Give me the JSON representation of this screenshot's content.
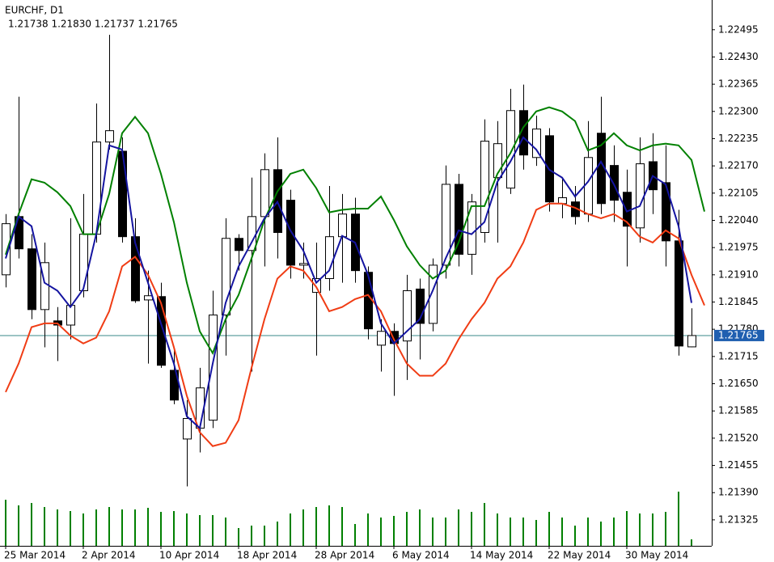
{
  "chart_data": {
    "type": "candlestick",
    "title": "EURCHF, D1",
    "subtitle": "1.21738 1.21830 1.21737 1.21765",
    "categories": [
      "25 Mar 2014",
      null,
      null,
      null,
      null,
      null,
      "2 Apr 2014",
      null,
      null,
      null,
      null,
      null,
      "10 Apr 2014",
      null,
      null,
      null,
      null,
      null,
      "18 Apr 2014",
      null,
      null,
      null,
      null,
      null,
      "28 Apr 2014",
      null,
      null,
      null,
      null,
      null,
      "6 May 2014",
      null,
      null,
      null,
      null,
      null,
      "14 May 2014",
      null,
      null,
      null,
      null,
      null,
      "22 May 2014",
      null,
      null,
      null,
      null,
      null,
      "30 May 2014",
      null,
      null,
      null,
      null,
      null,
      null
    ],
    "open": [
      1.2191,
      1.22049,
      1.21972,
      1.21827,
      1.218,
      1.2179,
      1.21872,
      1.22007,
      1.22227,
      1.22205,
      1.22001,
      1.2185,
      1.21858,
      1.21682,
      1.21518,
      1.21544,
      1.21563,
      1.21814,
      1.21997,
      1.21968,
      1.22049,
      1.22161,
      1.22088,
      1.21933,
      1.21868,
      1.21901,
      1.22001,
      1.22055,
      1.21916,
      1.21742,
      1.21775,
      1.21752,
      1.21876,
      1.21794,
      1.21933,
      1.22126,
      1.21959,
      1.22011,
      1.22142,
      1.22117,
      1.22302,
      1.2219,
      1.22242,
      1.2208,
      1.22084,
      1.22055,
      1.22248,
      1.22171,
      1.22107,
      1.22022,
      1.2218,
      1.2213,
      1.21991,
      1.21738,
      null
    ],
    "high": [
      1.22055,
      1.22335,
      1.22007,
      1.21987,
      1.21833,
      1.22045,
      1.22103,
      1.22319,
      1.22483,
      1.22238,
      1.22045,
      1.2192,
      1.21891,
      1.21736,
      1.21611,
      1.21688,
      1.21872,
      1.22045,
      1.22007,
      1.22142,
      1.222,
      1.22238,
      1.22113,
      1.21987,
      1.21987,
      1.22122,
      1.22103,
      1.22094,
      1.2193,
      1.21804,
      1.21794,
      1.2191,
      1.21901,
      1.21949,
      1.22171,
      1.22151,
      1.22103,
      1.22281,
      1.22277,
      1.22354,
      1.22364,
      1.2229,
      1.2226,
      1.22142,
      1.22122,
      1.22277,
      1.22335,
      1.22219,
      1.22161,
      1.22238,
      1.22248,
      1.22219,
      1.22065,
      1.2183,
      null
    ],
    "low": [
      1.2188,
      1.21949,
      1.21804,
      1.21737,
      1.21704,
      1.21756,
      1.21856,
      1.21987,
      1.22209,
      1.21987,
      1.21843,
      1.21698,
      1.21688,
      1.21601,
      1.21405,
      1.21486,
      1.21544,
      1.21717,
      1.2192,
      1.21679,
      1.2193,
      1.21949,
      1.21901,
      1.21901,
      1.21717,
      1.21872,
      1.21891,
      1.21891,
      1.21756,
      1.21679,
      1.21621,
      1.21659,
      1.21708,
      1.21775,
      1.21901,
      1.2193,
      1.2191,
      1.21987,
      1.21987,
      1.22103,
      1.22161,
      1.2217,
      1.22061,
      1.22045,
      1.2203,
      1.22036,
      1.22055,
      1.22036,
      1.2193,
      1.21987,
      1.22055,
      1.2193,
      1.21717,
      1.21737,
      null
    ],
    "close": [
      1.22032,
      1.21972,
      1.21827,
      1.21939,
      1.2179,
      1.21837,
      1.22007,
      1.22227,
      1.22254,
      1.22001,
      1.21848,
      1.2186,
      1.21694,
      1.21611,
      1.21567,
      1.2164,
      1.21814,
      1.21997,
      1.21968,
      1.22049,
      1.22161,
      1.22011,
      1.21933,
      1.21937,
      1.21901,
      1.22001,
      1.22055,
      1.2192,
      1.21781,
      1.21775,
      1.21746,
      1.21872,
      1.21794,
      1.21933,
      1.22126,
      1.21959,
      1.22084,
      1.22229,
      1.22223,
      1.22302,
      1.22196,
      1.22258,
      1.22084,
      1.22094,
      1.22049,
      1.2219,
      1.2208,
      1.22088,
      1.22026,
      1.22175,
      1.22113,
      1.21991,
      1.2174,
      1.21765,
      null
    ],
    "lines": [
      {
        "color": "#008000",
        "values": [
          1.21958,
          1.22055,
          1.22138,
          1.2213,
          1.22107,
          1.22074,
          1.22007,
          1.22007,
          1.22103,
          1.22248,
          1.22287,
          1.22248,
          1.22151,
          1.22036,
          1.21891,
          1.21775,
          1.21723,
          1.21804,
          1.21862,
          1.21949,
          1.22041,
          1.22109,
          1.22151,
          1.22161,
          1.22117,
          1.22059,
          1.22065,
          1.22068,
          1.22068,
          1.22097,
          1.22041,
          1.21978,
          1.21933,
          1.21901,
          1.2192,
          1.21987,
          1.22074,
          1.22074,
          1.22151,
          1.222,
          1.22262,
          1.223,
          1.2231,
          1.223,
          1.22277,
          1.22207,
          1.22219,
          1.22248,
          1.22219,
          1.22207,
          1.22219,
          1.22223,
          1.22219,
          1.22184,
          1.22061
        ]
      },
      {
        "color": "#f03c14",
        "values": [
          1.2163,
          1.21698,
          1.21785,
          1.21794,
          1.21794,
          1.21765,
          1.21746,
          1.2176,
          1.21823,
          1.2193,
          1.21953,
          1.2191,
          1.21843,
          1.21737,
          1.21621,
          1.21534,
          1.21501,
          1.21509,
          1.21563,
          1.21688,
          1.21804,
          1.21901,
          1.2193,
          1.2192,
          1.21881,
          1.21823,
          1.21833,
          1.21852,
          1.21862,
          1.21823,
          1.21756,
          1.21698,
          1.21669,
          1.21669,
          1.21698,
          1.21756,
          1.21804,
          1.21843,
          1.21901,
          1.2193,
          1.21987,
          1.22065,
          1.2208,
          1.2208,
          1.2207,
          1.22055,
          1.22045,
          1.22055,
          1.22036,
          1.22001,
          1.21987,
          1.22016,
          1.21997,
          1.2191,
          1.21837
        ]
      },
      {
        "color": "#1414a0",
        "values": [
          1.21949,
          1.22049,
          1.22026,
          1.21891,
          1.21872,
          1.21833,
          1.21876,
          1.22007,
          1.22219,
          1.22209,
          1.21987,
          1.21891,
          1.21794,
          1.21698,
          1.21572,
          1.21544,
          1.21698,
          1.21843,
          1.2193,
          1.21987,
          1.22045,
          1.22084,
          1.22016,
          1.21968,
          1.21891,
          1.2192,
          1.22003,
          1.21987,
          1.2191,
          1.21794,
          1.21746,
          1.21775,
          1.21804,
          1.21872,
          1.21949,
          1.22016,
          1.22007,
          1.22036,
          1.22132,
          1.2218,
          1.22238,
          1.22209,
          1.22161,
          1.22142,
          1.22097,
          1.22132,
          1.2218,
          1.22126,
          1.22061,
          1.22074,
          1.22146,
          1.22126,
          1.22026,
          1.21843,
          null
        ]
      }
    ],
    "volume": {
      "color": "#008000",
      "values": [
        57,
        50,
        53,
        48,
        45,
        43,
        40,
        45,
        48,
        45,
        45,
        47,
        42,
        43,
        40,
        38,
        38,
        35,
        22,
        25,
        25,
        30,
        40,
        45,
        48,
        50,
        48,
        27,
        40,
        35,
        37,
        42,
        45,
        35,
        35,
        45,
        42,
        53,
        40,
        35,
        35,
        32,
        42,
        35,
        25,
        35,
        30,
        35,
        43,
        40,
        40,
        42,
        67,
        8,
        null
      ]
    },
    "current_price": 1.21765,
    "ylim": [
      1.21263,
      1.22566
    ],
    "yticks": [
      1.22495,
      {
        "value": 1.2243,
        "label": "1.22430"
      },
      1.22365,
      {
        "value": 1.223,
        "label": "1.22300"
      },
      1.22235,
      {
        "value": 1.2217,
        "label": "1.22170"
      },
      1.22105,
      {
        "value": 1.2204,
        "label": "1.22040"
      },
      1.21975,
      {
        "value": 1.2191,
        "label": "1.21910"
      },
      1.21845,
      {
        "value": 1.2178,
        "label": "1.21780"
      },
      1.21715,
      {
        "value": 1.2165,
        "label": "1.21650"
      },
      1.21585,
      {
        "value": 1.2152,
        "label": "1.21520"
      },
      1.21455,
      {
        "value": 1.2139,
        "label": "1.21390"
      },
      1.21325
    ]
  }
}
